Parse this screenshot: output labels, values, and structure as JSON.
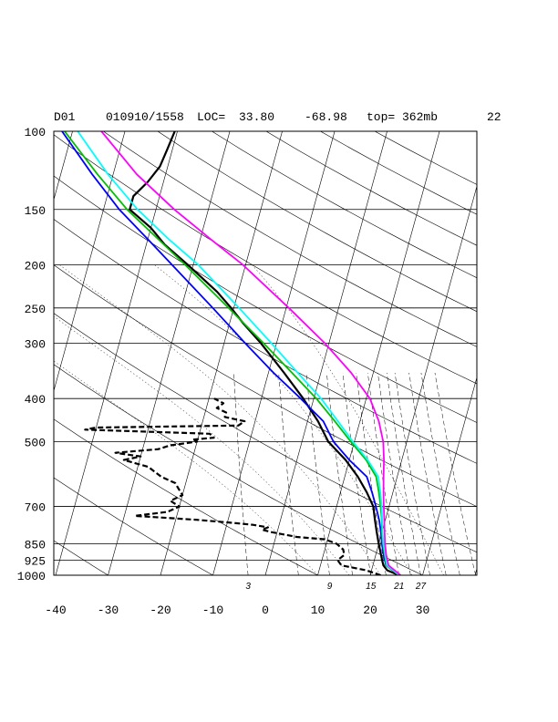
{
  "header": {
    "domain": "D01",
    "datetime": "010910/1558",
    "loc_label": "LOC=",
    "lat": "33.80",
    "lon": "-68.98",
    "top_text": "top= 362mb",
    "number": "22"
  },
  "chart_data": {
    "type": "line",
    "xlim": [
      -40,
      40
    ],
    "ylim": [
      1000,
      100
    ],
    "yscale": "log",
    "grid": true,
    "pressure_ticks": [
      "100",
      "150",
      "200",
      "250",
      "300",
      "400",
      "500",
      "700",
      "850",
      "925",
      "1000"
    ],
    "temperature_ticks": [
      "-40",
      "-30",
      "-20",
      "-10",
      "0",
      "10",
      "20",
      "30"
    ],
    "mixing_ratio_labels": [
      "3",
      "9",
      "15",
      "21",
      "27"
    ],
    "colors": {
      "temperature": "#000000",
      "dewpoint": "#000000",
      "blue": "#0000ff",
      "green": "#00c000",
      "cyan": "#00ffff",
      "magenta": "#ff00ff"
    },
    "series": [
      {
        "key": "temperature",
        "style": "solid",
        "points": [
          [
            1000,
            25.5
          ],
          [
            975,
            23
          ],
          [
            950,
            22
          ],
          [
            925,
            21.5
          ],
          [
            900,
            21
          ],
          [
            850,
            20
          ],
          [
            800,
            19
          ],
          [
            750,
            18
          ],
          [
            700,
            17
          ],
          [
            650,
            15
          ],
          [
            600,
            12.5
          ],
          [
            550,
            9.3
          ],
          [
            500,
            5
          ],
          [
            450,
            2
          ],
          [
            400,
            -2
          ],
          [
            350,
            -7
          ],
          [
            300,
            -13
          ],
          [
            270,
            -17.5
          ],
          [
            250,
            -20.5
          ],
          [
            230,
            -24
          ],
          [
            200,
            -31
          ],
          [
            180,
            -36.5
          ],
          [
            165,
            -40
          ],
          [
            150,
            -45
          ],
          [
            140,
            -45
          ],
          [
            130,
            -43
          ],
          [
            120,
            -41.5
          ],
          [
            110,
            -41
          ],
          [
            100,
            -40.5
          ]
        ]
      },
      {
        "key": "dewpoint",
        "style": "dashed",
        "points": [
          [
            1000,
            22
          ],
          [
            975,
            19
          ],
          [
            950,
            14
          ],
          [
            925,
            13
          ],
          [
            900,
            14
          ],
          [
            875,
            13.5
          ],
          [
            850,
            12
          ],
          [
            830,
            9.5
          ],
          [
            820,
            4
          ],
          [
            800,
            -1
          ],
          [
            790,
            -3
          ],
          [
            780,
            -2
          ],
          [
            770,
            -5
          ],
          [
            760,
            -10
          ],
          [
            750,
            -16
          ],
          [
            740,
            -24
          ],
          [
            735,
            -28
          ],
          [
            720,
            -22
          ],
          [
            700,
            -20
          ],
          [
            680,
            -22
          ],
          [
            660,
            -20
          ],
          [
            640,
            -21
          ],
          [
            620,
            -22
          ],
          [
            600,
            -25
          ],
          [
            570,
            -28
          ],
          [
            550,
            -33
          ],
          [
            540,
            -30
          ],
          [
            530,
            -35
          ],
          [
            520,
            -27
          ],
          [
            510,
            -25
          ],
          [
            500,
            -20
          ],
          [
            495,
            -21
          ],
          [
            490,
            -17
          ],
          [
            480,
            -18
          ],
          [
            470,
            -42
          ],
          [
            465,
            -40
          ],
          [
            460,
            -13
          ],
          [
            450,
            -12
          ],
          [
            440,
            -16
          ],
          [
            430,
            -16
          ],
          [
            420,
            -18
          ],
          [
            410,
            -17
          ],
          [
            400,
            -19
          ]
        ]
      },
      {
        "key": "blue",
        "style": "solid",
        "points": [
          [
            1000,
            25.5
          ],
          [
            950,
            22.5
          ],
          [
            900,
            21.5
          ],
          [
            850,
            20.6
          ],
          [
            800,
            19.8
          ],
          [
            750,
            18.8
          ],
          [
            700,
            17.5
          ],
          [
            650,
            16
          ],
          [
            600,
            14.2
          ],
          [
            550,
            10
          ],
          [
            500,
            6
          ],
          [
            450,
            3
          ],
          [
            400,
            -2.5
          ],
          [
            350,
            -9
          ],
          [
            300,
            -16
          ],
          [
            250,
            -24
          ],
          [
            200,
            -34
          ],
          [
            175,
            -40
          ],
          [
            150,
            -47
          ],
          [
            125,
            -54
          ],
          [
            100,
            -62
          ]
        ]
      },
      {
        "key": "green",
        "style": "solid",
        "points": [
          [
            1000,
            25.5
          ],
          [
            950,
            22.6
          ],
          [
            900,
            21.7
          ],
          [
            850,
            20.8
          ],
          [
            800,
            20
          ],
          [
            750,
            19.3
          ],
          [
            700,
            18.4
          ],
          [
            650,
            17.3
          ],
          [
            600,
            16
          ],
          [
            550,
            13.2
          ],
          [
            500,
            9.3
          ],
          [
            450,
            5.2
          ],
          [
            400,
            0.5
          ],
          [
            350,
            -5.5
          ],
          [
            300,
            -12.5
          ],
          [
            250,
            -21
          ],
          [
            200,
            -31.5
          ],
          [
            175,
            -38
          ],
          [
            150,
            -45.5
          ],
          [
            125,
            -53
          ],
          [
            100,
            -61.5
          ]
        ]
      },
      {
        "key": "cyan",
        "style": "solid",
        "points": [
          [
            1000,
            25.6
          ],
          [
            950,
            22.7
          ],
          [
            900,
            21.8
          ],
          [
            850,
            20.9
          ],
          [
            800,
            20.1
          ],
          [
            750,
            19.4
          ],
          [
            700,
            18.6
          ],
          [
            650,
            17.6
          ],
          [
            600,
            16.4
          ],
          [
            550,
            13.5
          ],
          [
            500,
            9.7
          ],
          [
            450,
            5.8
          ],
          [
            400,
            1.4
          ],
          [
            350,
            -4.4
          ],
          [
            300,
            -11
          ],
          [
            250,
            -19
          ],
          [
            200,
            -29
          ],
          [
            175,
            -36
          ],
          [
            150,
            -43.5
          ],
          [
            125,
            -51
          ],
          [
            100,
            -59
          ]
        ]
      },
      {
        "key": "magenta",
        "style": "solid",
        "points": [
          [
            1000,
            25.8
          ],
          [
            950,
            23
          ],
          [
            900,
            22
          ],
          [
            850,
            21.2
          ],
          [
            800,
            20.5
          ],
          [
            750,
            19.8
          ],
          [
            700,
            19
          ],
          [
            650,
            18.2
          ],
          [
            600,
            17.4
          ],
          [
            550,
            16.6
          ],
          [
            500,
            15.5
          ],
          [
            450,
            13.6
          ],
          [
            400,
            10.7
          ],
          [
            350,
            5.8
          ],
          [
            300,
            -0.8
          ],
          [
            250,
            -9.5
          ],
          [
            200,
            -20.5
          ],
          [
            175,
            -28
          ],
          [
            150,
            -36.5
          ],
          [
            125,
            -45.5
          ],
          [
            100,
            -54.5
          ]
        ]
      }
    ]
  }
}
